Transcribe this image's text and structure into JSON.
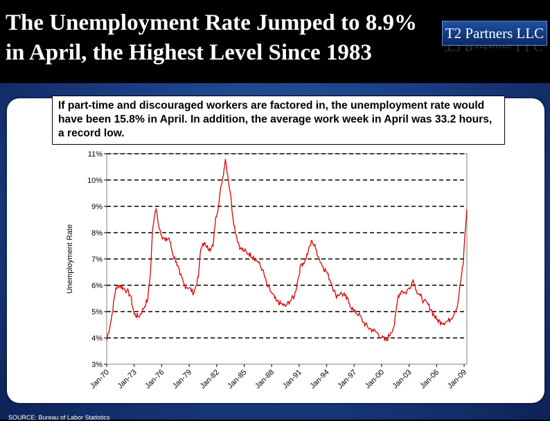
{
  "header": {
    "title_line1": "The Unemployment Rate Jumped to 8.9%",
    "title_line2": "in April, the Highest Level Since 1983",
    "brand": "T2 Partners LLC"
  },
  "callout": "If part-time and discouraged workers are factored in, the unemployment rate would have been 15.8% in April.  In addition, the average work week in April was 33.2 hours, a record low.",
  "colors": {
    "line": "#e00000",
    "panel": "#1b3f86",
    "header": "#000000"
  },
  "chart_data": {
    "type": "line",
    "title": "",
    "xlabel": "",
    "ylabel": "Unemployment Rate",
    "ylim": [
      3,
      11
    ],
    "yticks": [
      "3%",
      "4%",
      "5%",
      "6%",
      "7%",
      "8%",
      "9%",
      "10%",
      "11%"
    ],
    "xticks": [
      "Jan-70",
      "Jan-73",
      "Jan-76",
      "Jan-79",
      "Jan-82",
      "Jan-85",
      "Jan-88",
      "Jan-91",
      "Jan-94",
      "Jan-97",
      "Jan-00",
      "Jan-03",
      "Jan-06",
      "Jan-09"
    ],
    "xlim": [
      1970.0,
      2009.3
    ],
    "grid": "horizontal dashed",
    "series": [
      {
        "name": "",
        "x": [
          1970.0,
          1970.5,
          1971.0,
          1971.4,
          1971.8,
          1972.2,
          1972.6,
          1973.0,
          1973.5,
          1974.0,
          1974.5,
          1974.8,
          1975.0,
          1975.2,
          1975.4,
          1975.6,
          1976.0,
          1976.4,
          1976.8,
          1977.2,
          1977.6,
          1978.0,
          1978.5,
          1979.0,
          1979.5,
          1980.0,
          1980.2,
          1980.5,
          1980.8,
          1981.0,
          1981.3,
          1981.6,
          1981.9,
          1982.2,
          1982.5,
          1982.8,
          1982.95,
          1983.2,
          1983.5,
          1983.8,
          1984.2,
          1984.6,
          1985.0,
          1985.5,
          1986.0,
          1986.5,
          1987.0,
          1987.5,
          1988.0,
          1988.5,
          1989.0,
          1989.5,
          1990.0,
          1990.5,
          1990.8,
          1991.2,
          1991.6,
          1992.0,
          1992.4,
          1992.8,
          1993.2,
          1993.6,
          1994.0,
          1994.5,
          1995.0,
          1995.5,
          1996.0,
          1996.5,
          1997.0,
          1997.5,
          1998.0,
          1998.5,
          1999.0,
          1999.5,
          2000.0,
          2000.5,
          2001.0,
          2001.4,
          2001.8,
          2002.2,
          2002.6,
          2003.0,
          2003.45,
          2003.8,
          2004.2,
          2004.6,
          2005.0,
          2005.5,
          2006.0,
          2006.5,
          2007.0,
          2007.5,
          2008.0,
          2008.3,
          2008.6,
          2008.9,
          2009.1,
          2009.3
        ],
        "values": [
          3.9,
          4.7,
          5.9,
          6.0,
          5.9,
          5.8,
          5.6,
          4.9,
          4.8,
          5.1,
          5.5,
          6.6,
          8.1,
          8.6,
          8.9,
          8.4,
          7.9,
          7.7,
          7.8,
          7.2,
          6.9,
          6.4,
          6.0,
          5.9,
          5.7,
          6.3,
          7.2,
          7.6,
          7.5,
          7.5,
          7.3,
          7.5,
          8.6,
          9.0,
          9.8,
          10.4,
          10.8,
          10.2,
          9.5,
          8.5,
          7.8,
          7.4,
          7.3,
          7.2,
          7.1,
          6.9,
          6.6,
          6.0,
          5.7,
          5.4,
          5.3,
          5.2,
          5.4,
          5.6,
          6.1,
          6.8,
          6.9,
          7.3,
          7.7,
          7.4,
          7.0,
          6.7,
          6.5,
          6.1,
          5.6,
          5.7,
          5.6,
          5.3,
          5.0,
          4.9,
          4.6,
          4.4,
          4.3,
          4.2,
          4.0,
          3.9,
          4.2,
          4.5,
          5.6,
          5.8,
          5.7,
          5.9,
          6.2,
          5.8,
          5.6,
          5.4,
          5.3,
          5.0,
          4.7,
          4.6,
          4.6,
          4.7,
          5.0,
          5.3,
          6.1,
          6.8,
          8.0,
          8.9
        ]
      }
    ]
  },
  "source": "SOURCE: Bureau of Labor Statistics"
}
